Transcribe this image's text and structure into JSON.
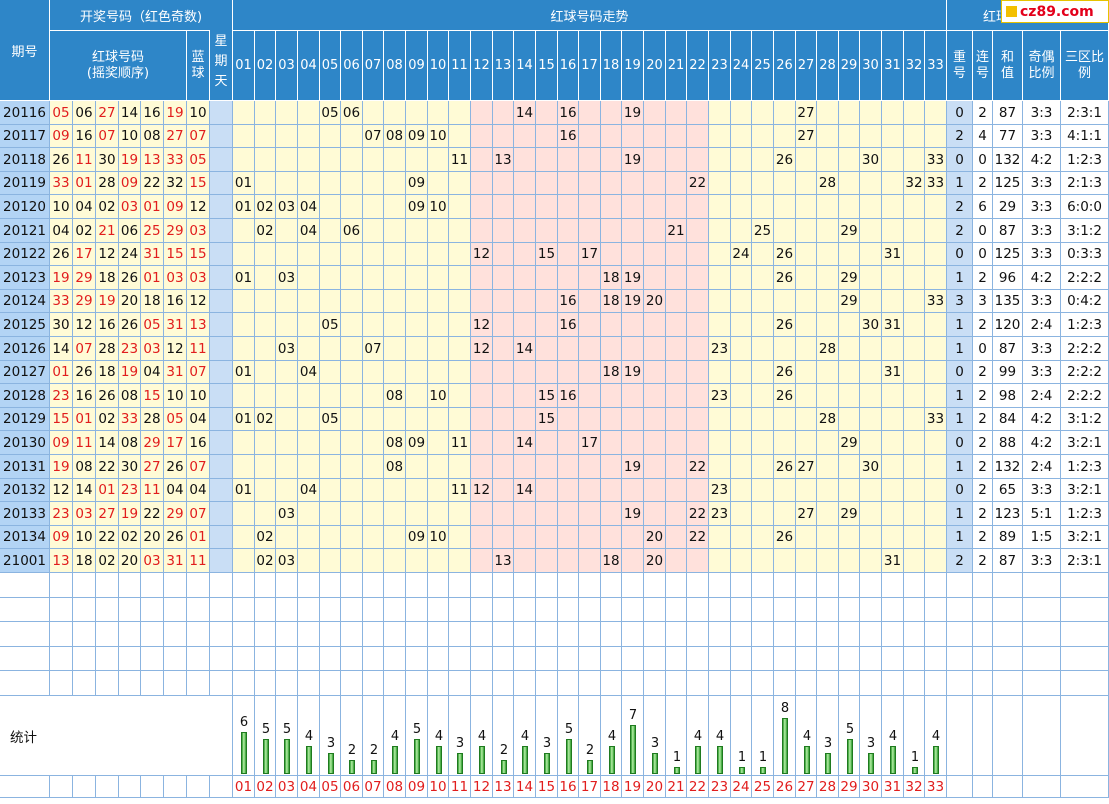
{
  "logo": "cz89.com",
  "headers": {
    "period": "期号",
    "draw_group": "开奖号码（红色奇数)",
    "red_balls": "红球号码",
    "red_order": "(摇奖顺序)",
    "blue": "蓝球",
    "weekday": "星期天",
    "trend": "红球号码走势",
    "shape": "红球号码形势",
    "repeat": "重号",
    "consecutive": "连号",
    "sum": "和值",
    "odd_even": "奇偶比例",
    "zone": "三区比例"
  },
  "columns": [
    "01",
    "02",
    "03",
    "04",
    "05",
    "06",
    "07",
    "08",
    "09",
    "10",
    "11",
    "12",
    "13",
    "14",
    "15",
    "16",
    "17",
    "18",
    "19",
    "20",
    "21",
    "22",
    "23",
    "24",
    "25",
    "26",
    "27",
    "28",
    "29",
    "30",
    "31",
    "32",
    "33"
  ],
  "rows": [
    {
      "period": "20116",
      "reds": [
        "05",
        "06",
        "27",
        "14",
        "16",
        "19"
      ],
      "blue": "10",
      "repeat": "0",
      "consec": "2",
      "sum": "87",
      "oddeven": "3:3",
      "zone": "2:3:1"
    },
    {
      "period": "20117",
      "reds": [
        "09",
        "16",
        "07",
        "10",
        "08",
        "27"
      ],
      "blue": "07",
      "repeat": "2",
      "consec": "4",
      "sum": "77",
      "oddeven": "3:3",
      "zone": "4:1:1"
    },
    {
      "period": "20118",
      "reds": [
        "26",
        "11",
        "30",
        "19",
        "13",
        "33"
      ],
      "blue": "05",
      "repeat": "0",
      "consec": "0",
      "sum": "132",
      "oddeven": "4:2",
      "zone": "1:2:3"
    },
    {
      "period": "20119",
      "reds": [
        "33",
        "01",
        "28",
        "09",
        "22",
        "32"
      ],
      "blue": "15",
      "repeat": "1",
      "consec": "2",
      "sum": "125",
      "oddeven": "3:3",
      "zone": "2:1:3"
    },
    {
      "period": "20120",
      "reds": [
        "10",
        "04",
        "02",
        "03",
        "01",
        "09"
      ],
      "blue": "12",
      "repeat": "2",
      "consec": "6",
      "sum": "29",
      "oddeven": "3:3",
      "zone": "6:0:0"
    },
    {
      "period": "20121",
      "reds": [
        "04",
        "02",
        "21",
        "06",
        "25",
        "29"
      ],
      "blue": "03",
      "repeat": "2",
      "consec": "0",
      "sum": "87",
      "oddeven": "3:3",
      "zone": "3:1:2"
    },
    {
      "period": "20122",
      "reds": [
        "26",
        "17",
        "12",
        "24",
        "31",
        "15"
      ],
      "blue": "15",
      "repeat": "0",
      "consec": "0",
      "sum": "125",
      "oddeven": "3:3",
      "zone": "0:3:3"
    },
    {
      "period": "20123",
      "reds": [
        "19",
        "29",
        "18",
        "26",
        "01",
        "03"
      ],
      "blue": "03",
      "repeat": "1",
      "consec": "2",
      "sum": "96",
      "oddeven": "4:2",
      "zone": "2:2:2"
    },
    {
      "period": "20124",
      "reds": [
        "33",
        "29",
        "19",
        "20",
        "18",
        "16"
      ],
      "blue": "12",
      "repeat": "3",
      "consec": "3",
      "sum": "135",
      "oddeven": "3:3",
      "zone": "0:4:2"
    },
    {
      "period": "20125",
      "reds": [
        "30",
        "12",
        "16",
        "26",
        "05",
        "31"
      ],
      "blue": "13",
      "repeat": "1",
      "consec": "2",
      "sum": "120",
      "oddeven": "2:4",
      "zone": "1:2:3"
    },
    {
      "period": "20126",
      "reds": [
        "14",
        "07",
        "28",
        "23",
        "03",
        "12"
      ],
      "blue": "11",
      "repeat": "1",
      "consec": "0",
      "sum": "87",
      "oddeven": "3:3",
      "zone": "2:2:2"
    },
    {
      "period": "20127",
      "reds": [
        "01",
        "26",
        "18",
        "19",
        "04",
        "31"
      ],
      "blue": "07",
      "repeat": "0",
      "consec": "2",
      "sum": "99",
      "oddeven": "3:3",
      "zone": "2:2:2"
    },
    {
      "period": "20128",
      "reds": [
        "23",
        "16",
        "26",
        "08",
        "15",
        "10"
      ],
      "blue": "10",
      "repeat": "1",
      "consec": "2",
      "sum": "98",
      "oddeven": "2:4",
      "zone": "2:2:2"
    },
    {
      "period": "20129",
      "reds": [
        "15",
        "01",
        "02",
        "33",
        "28",
        "05"
      ],
      "blue": "04",
      "repeat": "1",
      "consec": "2",
      "sum": "84",
      "oddeven": "4:2",
      "zone": "3:1:2"
    },
    {
      "period": "20130",
      "reds": [
        "09",
        "11",
        "14",
        "08",
        "29",
        "17"
      ],
      "blue": "16",
      "repeat": "0",
      "consec": "2",
      "sum": "88",
      "oddeven": "4:2",
      "zone": "3:2:1"
    },
    {
      "period": "20131",
      "reds": [
        "19",
        "08",
        "22",
        "30",
        "27",
        "26"
      ],
      "blue": "07",
      "repeat": "1",
      "consec": "2",
      "sum": "132",
      "oddeven": "2:4",
      "zone": "1:2:3"
    },
    {
      "period": "20132",
      "reds": [
        "12",
        "14",
        "01",
        "23",
        "11",
        "04"
      ],
      "blue": "04",
      "repeat": "0",
      "consec": "2",
      "sum": "65",
      "oddeven": "3:3",
      "zone": "3:2:1"
    },
    {
      "period": "20133",
      "reds": [
        "23",
        "03",
        "27",
        "19",
        "22",
        "29"
      ],
      "blue": "07",
      "repeat": "1",
      "consec": "2",
      "sum": "123",
      "oddeven": "5:1",
      "zone": "1:2:3"
    },
    {
      "period": "20134",
      "reds": [
        "09",
        "10",
        "22",
        "02",
        "20",
        "26"
      ],
      "blue": "01",
      "repeat": "1",
      "consec": "2",
      "sum": "89",
      "oddeven": "1:5",
      "zone": "3:2:1"
    },
    {
      "period": "21001",
      "reds": [
        "13",
        "18",
        "02",
        "20",
        "03",
        "31"
      ],
      "blue": "11",
      "repeat": "2",
      "consec": "2",
      "sum": "87",
      "oddeven": "3:3",
      "zone": "2:3:1"
    }
  ],
  "stats": {
    "label": "统计",
    "counts": [
      6,
      5,
      5,
      4,
      3,
      2,
      2,
      4,
      5,
      4,
      3,
      4,
      2,
      4,
      3,
      5,
      2,
      4,
      7,
      3,
      1,
      4,
      4,
      1,
      1,
      8,
      4,
      3,
      5,
      3,
      4,
      1,
      4
    ]
  },
  "colors": {
    "header": "#2e86c8",
    "odd": "#e11d1d",
    "yellow": "#fffbd6",
    "pink": "#ffe1dc",
    "blue_cell": "#c9def5",
    "grid": "#8bb4e0"
  }
}
